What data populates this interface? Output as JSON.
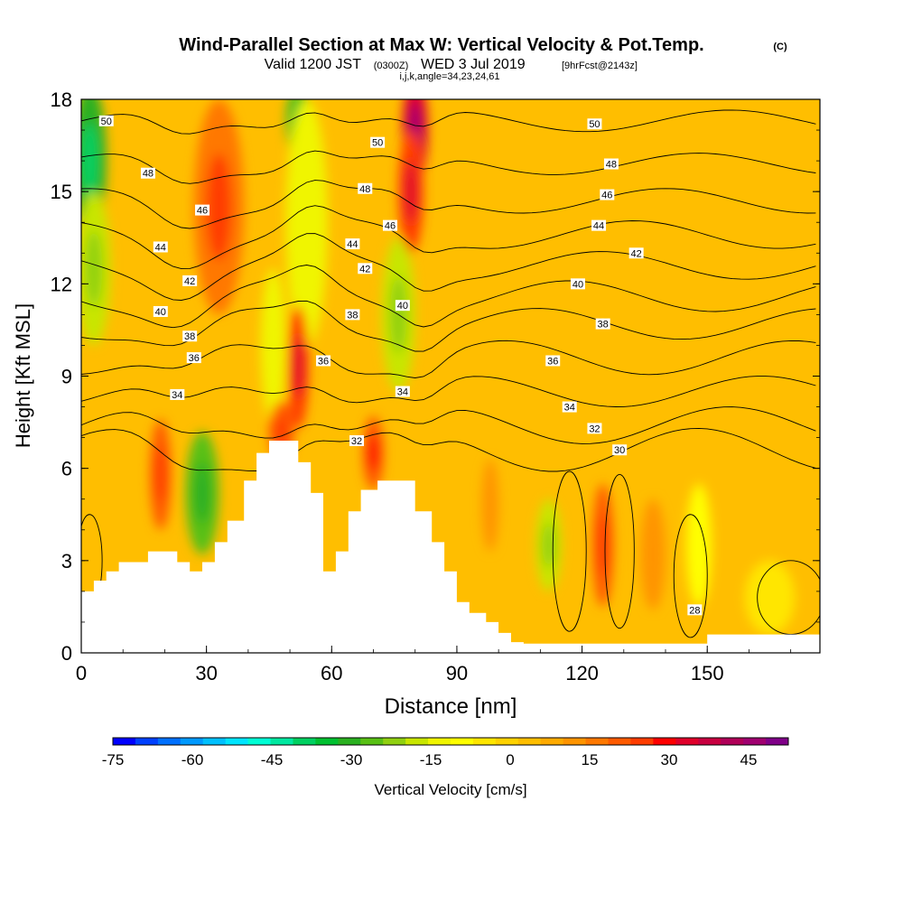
{
  "chart_data": {
    "type": "heatmap",
    "title": "Wind-Parallel Section at Max W: Vertical Velocity & Pot.Temp.",
    "title_mark": "(C)",
    "subtitle": {
      "valid": "Valid 1200 JST",
      "utc": "(0300Z)",
      "date": "WED 3 Jul 2019",
      "forecast": "[9hrFcst@2143z]",
      "ijk": "i,j,k,angle=34,23,24,61"
    },
    "xlabel": "Distance [nm]",
    "ylabel": "Height [Kft MSL]",
    "xlim": [
      0,
      177
    ],
    "ylim": [
      0,
      18
    ],
    "x_ticks": [
      0,
      30,
      60,
      90,
      120,
      150
    ],
    "y_ticks": [
      0,
      3,
      6,
      9,
      12,
      15,
      18
    ],
    "colorbar": {
      "label": "Vertical Velocity [cm/s]",
      "ticks": [
        -75,
        -60,
        -45,
        -30,
        -15,
        0,
        15,
        30,
        45
      ],
      "range": [
        -75,
        52.5
      ],
      "colors": [
        "#0000ff",
        "#0040ff",
        "#0070ff",
        "#0099ff",
        "#00c0ff",
        "#00e5ff",
        "#00ffd5",
        "#00e8a0",
        "#00d060",
        "#00c030",
        "#2ab020",
        "#58c014",
        "#90d010",
        "#c8e600",
        "#f0f500",
        "#ffff00",
        "#ffe600",
        "#ffd200",
        "#ffbe00",
        "#ffaa00",
        "#ff9400",
        "#ff7800",
        "#ff5a00",
        "#ff3c00",
        "#ff0000",
        "#e0002a",
        "#c80040",
        "#b00058",
        "#a00070",
        "#800088"
      ]
    },
    "terrain": [
      [
        0,
        2
      ],
      [
        3,
        2
      ],
      [
        3,
        2.35
      ],
      [
        6,
        2.35
      ],
      [
        6,
        2.65
      ],
      [
        9,
        2.65
      ],
      [
        9,
        2.95
      ],
      [
        16,
        2.95
      ],
      [
        16,
        3.3
      ],
      [
        23,
        3.3
      ],
      [
        23,
        2.95
      ],
      [
        26,
        2.95
      ],
      [
        26,
        2.65
      ],
      [
        29,
        2.65
      ],
      [
        29,
        2.95
      ],
      [
        32,
        2.95
      ],
      [
        32,
        3.6
      ],
      [
        35,
        3.6
      ],
      [
        35,
        4.3
      ],
      [
        39,
        4.3
      ],
      [
        39,
        5.6
      ],
      [
        42,
        5.6
      ],
      [
        42,
        6.5
      ],
      [
        45,
        6.5
      ],
      [
        45,
        6.9
      ],
      [
        52,
        6.9
      ],
      [
        52,
        6.2
      ],
      [
        55,
        6.2
      ],
      [
        55,
        5.2
      ],
      [
        58,
        5.2
      ],
      [
        58,
        2.65
      ],
      [
        61,
        2.65
      ],
      [
        61,
        3.3
      ],
      [
        64,
        3.3
      ],
      [
        64,
        4.6
      ],
      [
        67,
        4.6
      ],
      [
        67,
        5.3
      ],
      [
        71,
        5.3
      ],
      [
        71,
        5.6
      ],
      [
        80,
        5.6
      ],
      [
        80,
        4.6
      ],
      [
        84,
        4.6
      ],
      [
        84,
        3.6
      ],
      [
        87,
        3.6
      ],
      [
        87,
        2.65
      ],
      [
        90,
        2.65
      ],
      [
        90,
        1.65
      ],
      [
        93,
        1.65
      ],
      [
        93,
        1.3
      ],
      [
        97,
        1.3
      ],
      [
        97,
        1.0
      ],
      [
        100,
        1.0
      ],
      [
        100,
        0.65
      ],
      [
        103,
        0.65
      ],
      [
        103,
        0.35
      ],
      [
        106,
        0.35
      ],
      [
        106,
        0.3
      ],
      [
        130,
        0.3
      ],
      [
        140,
        0.3
      ],
      [
        150,
        0.3
      ],
      [
        150,
        0.6
      ],
      [
        177,
        0.6
      ]
    ],
    "isentropes": [
      {
        "level": "50",
        "label_pos": [
          [
            6,
            17.3
          ],
          [
            71,
            16.6
          ],
          [
            123,
            17.2
          ]
        ]
      },
      {
        "level": "48",
        "label_pos": [
          [
            16,
            15.6
          ],
          [
            68,
            15.1
          ],
          [
            127,
            15.9
          ]
        ]
      },
      {
        "level": "46",
        "label_pos": [
          [
            29,
            14.4
          ],
          [
            74,
            13.9
          ],
          [
            126,
            14.9
          ]
        ]
      },
      {
        "level": "44",
        "label_pos": [
          [
            19,
            13.2
          ],
          [
            65,
            13.3
          ],
          [
            124,
            13.9
          ]
        ]
      },
      {
        "level": "42",
        "label_pos": [
          [
            26,
            12.1
          ],
          [
            68,
            12.5
          ],
          [
            133,
            13.0
          ]
        ]
      },
      {
        "level": "40",
        "label_pos": [
          [
            19,
            11.1
          ],
          [
            77,
            11.3
          ],
          [
            119,
            12.0
          ]
        ]
      },
      {
        "level": "38",
        "label_pos": [
          [
            26,
            10.3
          ],
          [
            65,
            11.0
          ],
          [
            125,
            10.7
          ]
        ]
      },
      {
        "level": "36",
        "label_pos": [
          [
            27,
            9.6
          ],
          [
            58,
            9.5
          ],
          [
            113,
            9.5
          ]
        ]
      },
      {
        "level": "34",
        "label_pos": [
          [
            23,
            8.4
          ],
          [
            77,
            8.5
          ],
          [
            117,
            8.0
          ]
        ]
      },
      {
        "level": "32",
        "label_pos": [
          [
            66,
            6.9
          ],
          [
            123,
            7.3
          ]
        ]
      },
      {
        "level": "30",
        "label_pos": [
          [
            129,
            6.6
          ]
        ]
      },
      {
        "level": "28",
        "label_pos": [
          [
            147,
            1.4
          ]
        ]
      }
    ],
    "isentrope_baselines": [
      {
        "base": 17.3,
        "amp": 0.35
      },
      {
        "base": 15.9,
        "amp": 0.35
      },
      {
        "base": 14.7,
        "amp": 0.4
      },
      {
        "base": 13.6,
        "amp": 0.45
      },
      {
        "base": 12.6,
        "amp": 0.45
      },
      {
        "base": 11.6,
        "amp": 0.5
      },
      {
        "base": 10.7,
        "amp": 0.5
      },
      {
        "base": 9.6,
        "amp": 0.55
      },
      {
        "base": 8.5,
        "amp": 0.5
      },
      {
        "base": 7.4,
        "amp": 0.6
      },
      {
        "base": 6.6,
        "amp": 0.7
      }
    ],
    "w_field_notes": "shading derived from blobs below",
    "w_blobs": [
      {
        "cx": 2,
        "cy": 16,
        "rx": 4,
        "ry": 2.5,
        "w": -30
      },
      {
        "cx": 3,
        "cy": 12.5,
        "rx": 4,
        "ry": 2.5,
        "w": -18
      },
      {
        "cx": 52,
        "cy": 17.3,
        "rx": 3,
        "ry": 1.2,
        "w": -28
      },
      {
        "cx": 19,
        "cy": 5.8,
        "rx": 2.5,
        "ry": 1.8,
        "w": 20
      },
      {
        "cx": 29,
        "cy": 5.2,
        "rx": 4,
        "ry": 2.0,
        "w": -25
      },
      {
        "cx": 33,
        "cy": 14.5,
        "rx": 6,
        "ry": 3.5,
        "w": 18
      },
      {
        "cx": 54,
        "cy": 14,
        "rx": 5,
        "ry": 4,
        "w": -15
      },
      {
        "cx": 46,
        "cy": 10,
        "rx": 3,
        "ry": 2.5,
        "w": -15
      },
      {
        "cx": 52,
        "cy": 9.3,
        "rx": 2.5,
        "ry": 2.0,
        "w": 25
      },
      {
        "cx": 48,
        "cy": 7.2,
        "rx": 3,
        "ry": 1.0,
        "w": 20
      },
      {
        "cx": 70,
        "cy": 6.5,
        "rx": 2.5,
        "ry": 1.2,
        "w": 22
      },
      {
        "cx": 80,
        "cy": 17,
        "rx": 3,
        "ry": 1.8,
        "w": 35
      },
      {
        "cx": 79,
        "cy": 15,
        "rx": 3,
        "ry": 2.0,
        "w": 25
      },
      {
        "cx": 76,
        "cy": 11,
        "rx": 4,
        "ry": 2.5,
        "w": -18
      },
      {
        "cx": 112,
        "cy": 3.5,
        "rx": 3,
        "ry": 1.5,
        "w": -18
      },
      {
        "cx": 125,
        "cy": 3.5,
        "rx": 2.5,
        "ry": 2.0,
        "w": 20
      },
      {
        "cx": 98,
        "cy": 4.8,
        "rx": 2,
        "ry": 1.5,
        "w": 10
      },
      {
        "cx": 137,
        "cy": 3.2,
        "rx": 3,
        "ry": 1.8,
        "w": 12
      },
      {
        "cx": 148,
        "cy": 3.5,
        "rx": 3,
        "ry": 2.0,
        "w": -8
      },
      {
        "cx": 165,
        "cy": 1.8,
        "rx": 6,
        "ry": 1.2,
        "w": -5
      }
    ],
    "background_w": 3
  }
}
